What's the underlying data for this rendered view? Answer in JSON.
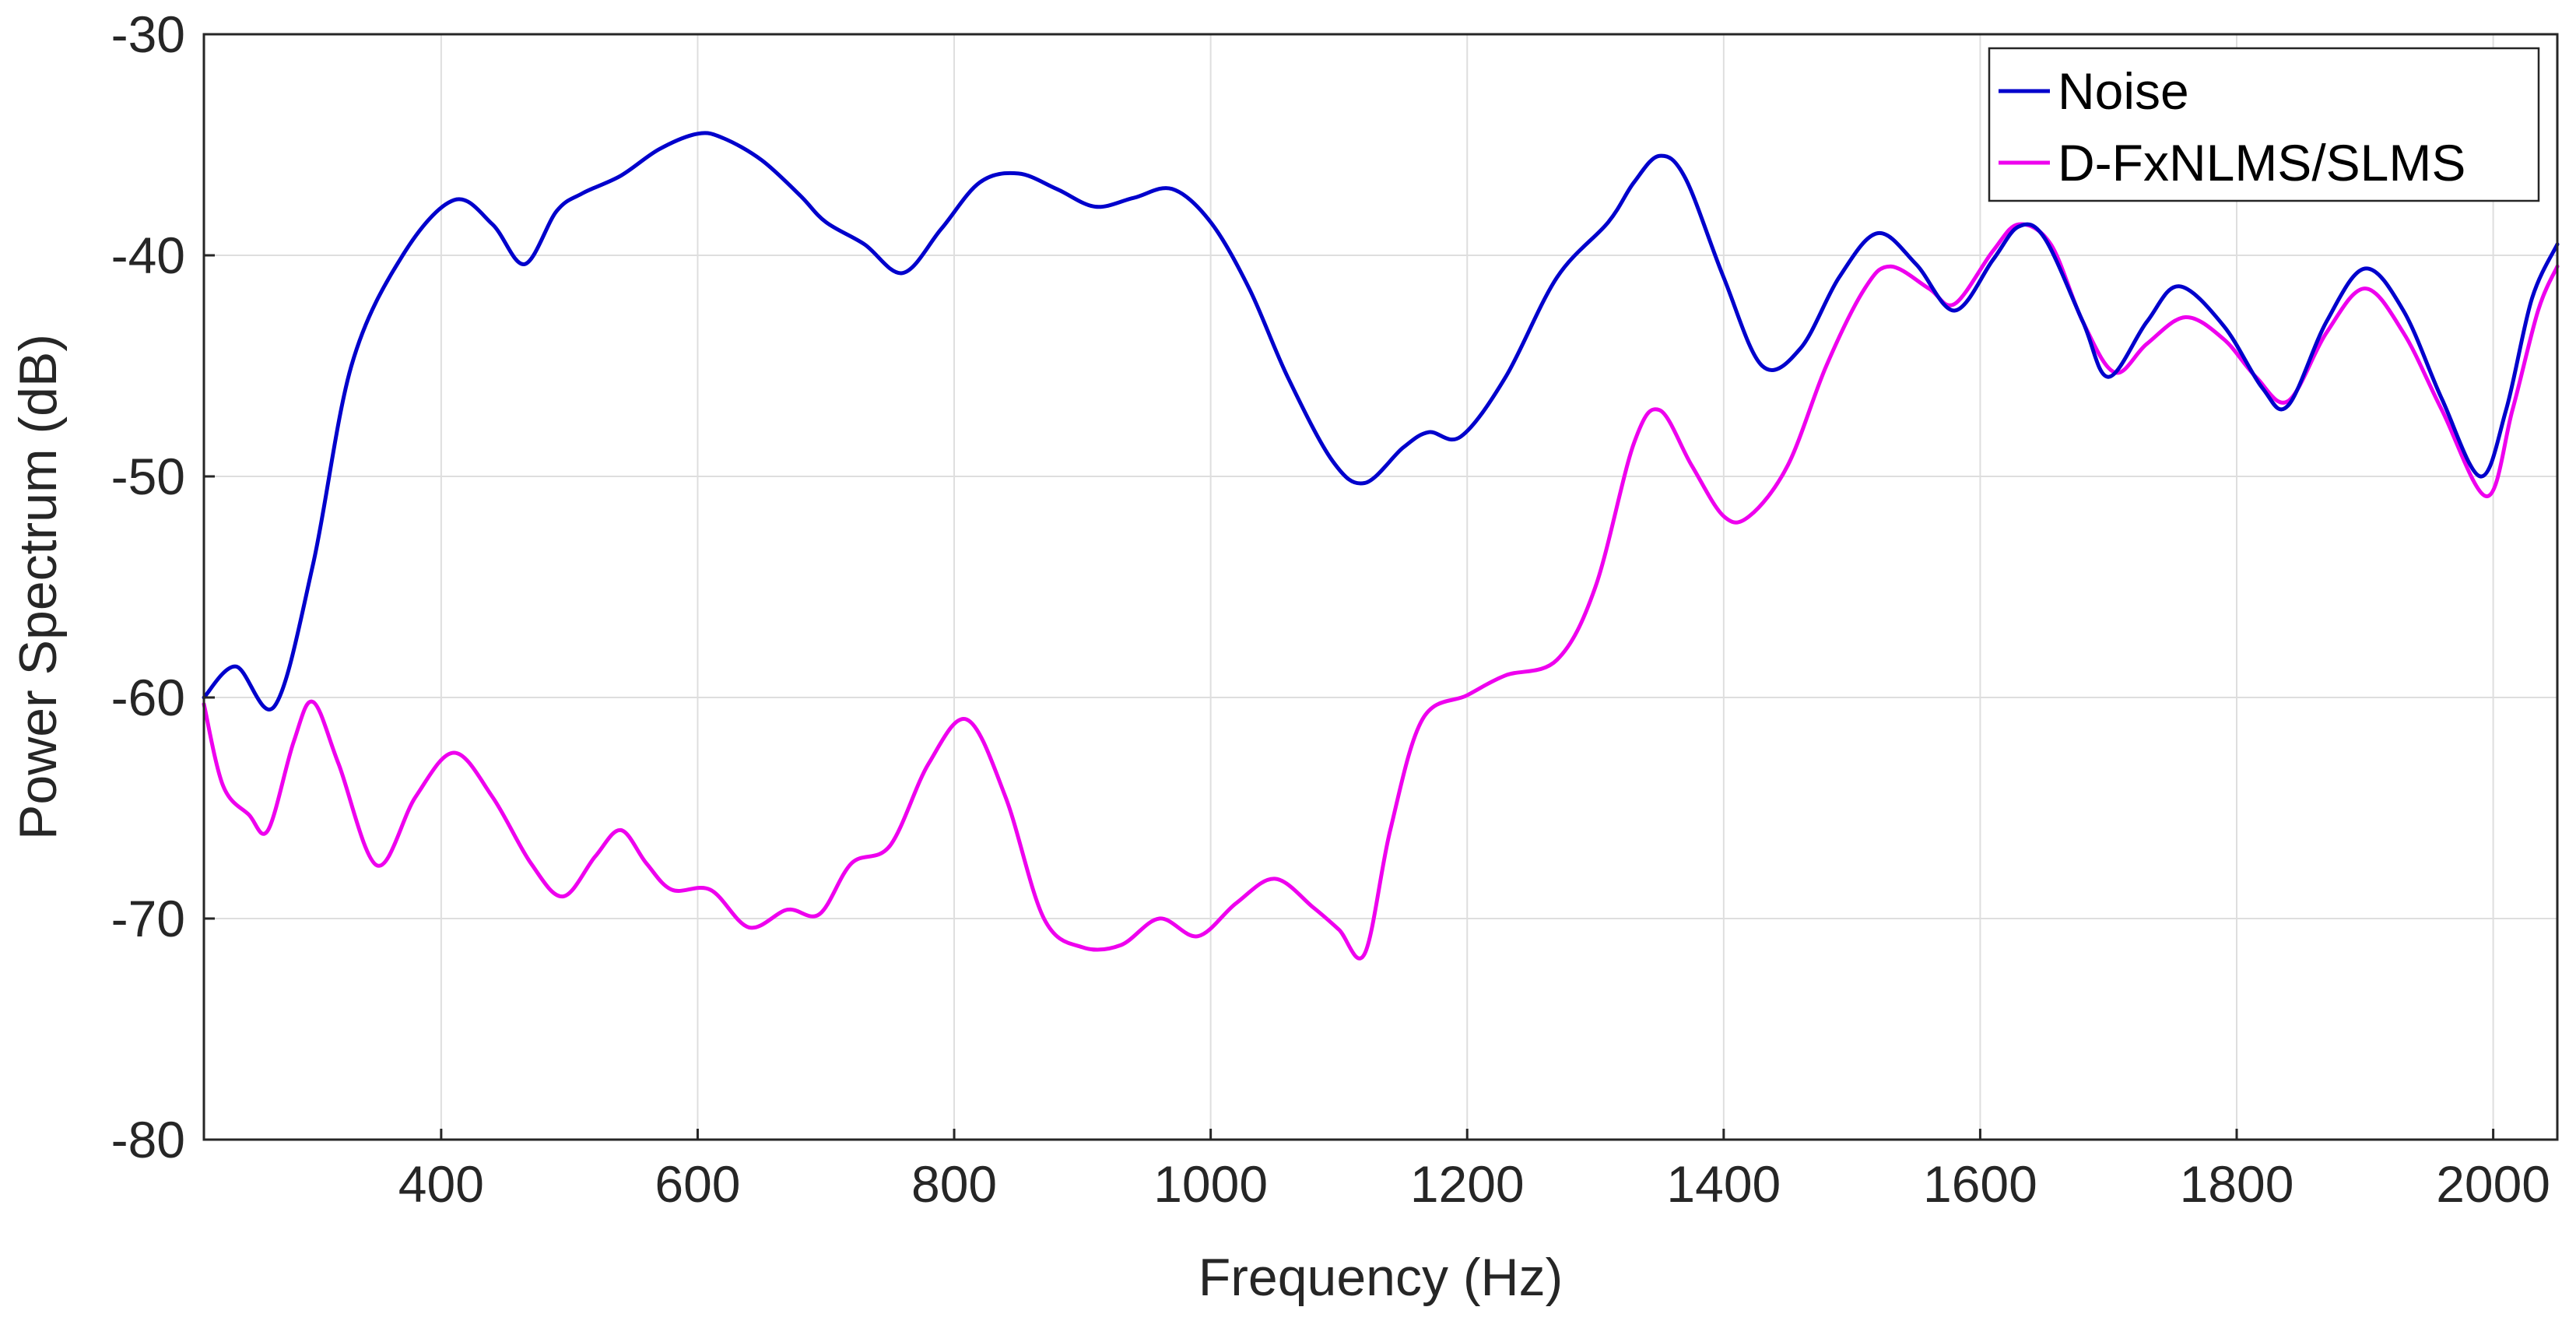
{
  "chart_data": {
    "type": "line",
    "xlabel": "Frequency (Hz)",
    "ylabel": "Power Spectrum (dB)",
    "xlim": [
      215,
      2050
    ],
    "ylim": [
      -80,
      -30
    ],
    "x_ticks": [
      400,
      600,
      800,
      1000,
      1200,
      1400,
      1600,
      1800,
      2000
    ],
    "y_ticks": [
      -80,
      -70,
      -60,
      -50,
      -40,
      -30
    ],
    "grid": true,
    "legend_position": "top-right",
    "series": [
      {
        "name": "Noise",
        "color": "#0000cc",
        "points": [
          [
            215,
            -60
          ],
          [
            240,
            -58.6
          ],
          [
            270,
            -60.4
          ],
          [
            300,
            -54
          ],
          [
            330,
            -45
          ],
          [
            370,
            -40
          ],
          [
            410,
            -37.5
          ],
          [
            440,
            -38.6
          ],
          [
            465,
            -40.4
          ],
          [
            490,
            -38
          ],
          [
            510,
            -37.2
          ],
          [
            540,
            -36.4
          ],
          [
            570,
            -35.2
          ],
          [
            600,
            -34.5
          ],
          [
            620,
            -34.7
          ],
          [
            650,
            -35.7
          ],
          [
            680,
            -37.3
          ],
          [
            700,
            -38.5
          ],
          [
            730,
            -39.5
          ],
          [
            760,
            -40.8
          ],
          [
            790,
            -38.8
          ],
          [
            820,
            -36.7
          ],
          [
            850,
            -36.3
          ],
          [
            880,
            -37
          ],
          [
            910,
            -37.8
          ],
          [
            940,
            -37.4
          ],
          [
            970,
            -37
          ],
          [
            1000,
            -38.5
          ],
          [
            1030,
            -41.5
          ],
          [
            1060,
            -45.5
          ],
          [
            1095,
            -49.3
          ],
          [
            1120,
            -50.3
          ],
          [
            1150,
            -48.7
          ],
          [
            1170,
            -48
          ],
          [
            1195,
            -48.2
          ],
          [
            1230,
            -45.5
          ],
          [
            1270,
            -41
          ],
          [
            1310,
            -38.5
          ],
          [
            1330,
            -36.7
          ],
          [
            1350,
            -35.5
          ],
          [
            1370,
            -36.5
          ],
          [
            1400,
            -41
          ],
          [
            1430,
            -45
          ],
          [
            1460,
            -44.2
          ],
          [
            1490,
            -41
          ],
          [
            1520,
            -39
          ],
          [
            1550,
            -40.4
          ],
          [
            1580,
            -42.5
          ],
          [
            1610,
            -40.2
          ],
          [
            1630,
            -38.7
          ],
          [
            1650,
            -39.2
          ],
          [
            1680,
            -43
          ],
          [
            1700,
            -45.5
          ],
          [
            1730,
            -43
          ],
          [
            1755,
            -41.4
          ],
          [
            1790,
            -43.2
          ],
          [
            1820,
            -46
          ],
          [
            1840,
            -46.8
          ],
          [
            1870,
            -43
          ],
          [
            1900,
            -40.6
          ],
          [
            1930,
            -42.5
          ],
          [
            1960,
            -46.5
          ],
          [
            1990,
            -50
          ],
          [
            2010,
            -47
          ],
          [
            2030,
            -42
          ],
          [
            2050,
            -39.5
          ]
        ]
      },
      {
        "name": "D-FxNLMS/SLMS",
        "color": "#ee00ee",
        "points": [
          [
            215,
            -60.3
          ],
          [
            230,
            -64
          ],
          [
            250,
            -65.3
          ],
          [
            265,
            -66
          ],
          [
            285,
            -62
          ],
          [
            300,
            -60.2
          ],
          [
            320,
            -63
          ],
          [
            350,
            -67.6
          ],
          [
            380,
            -64.5
          ],
          [
            410,
            -62.5
          ],
          [
            440,
            -64.5
          ],
          [
            470,
            -67.5
          ],
          [
            495,
            -69
          ],
          [
            520,
            -67.2
          ],
          [
            540,
            -66
          ],
          [
            560,
            -67.5
          ],
          [
            580,
            -68.7
          ],
          [
            610,
            -68.7
          ],
          [
            640,
            -70.4
          ],
          [
            670,
            -69.6
          ],
          [
            695,
            -69.8
          ],
          [
            720,
            -67.5
          ],
          [
            750,
            -66.7
          ],
          [
            780,
            -63
          ],
          [
            810,
            -61
          ],
          [
            840,
            -64.5
          ],
          [
            870,
            -70
          ],
          [
            900,
            -71.3
          ],
          [
            930,
            -71.2
          ],
          [
            960,
            -70
          ],
          [
            990,
            -70.8
          ],
          [
            1020,
            -69.3
          ],
          [
            1050,
            -68.2
          ],
          [
            1080,
            -69.5
          ],
          [
            1100,
            -70.5
          ],
          [
            1120,
            -71.6
          ],
          [
            1140,
            -66
          ],
          [
            1165,
            -61
          ],
          [
            1200,
            -59.9
          ],
          [
            1230,
            -59
          ],
          [
            1270,
            -58.3
          ],
          [
            1300,
            -55
          ],
          [
            1330,
            -48.5
          ],
          [
            1350,
            -47
          ],
          [
            1375,
            -49.5
          ],
          [
            1400,
            -51.8
          ],
          [
            1420,
            -51.8
          ],
          [
            1450,
            -49.5
          ],
          [
            1480,
            -45
          ],
          [
            1510,
            -41.5
          ],
          [
            1530,
            -40.5
          ],
          [
            1560,
            -41.5
          ],
          [
            1580,
            -42.2
          ],
          [
            1610,
            -39.8
          ],
          [
            1630,
            -38.6
          ],
          [
            1655,
            -39.5
          ],
          [
            1680,
            -43
          ],
          [
            1705,
            -45.3
          ],
          [
            1730,
            -44
          ],
          [
            1760,
            -42.8
          ],
          [
            1790,
            -43.8
          ],
          [
            1815,
            -45.5
          ],
          [
            1840,
            -46.6
          ],
          [
            1870,
            -43.5
          ],
          [
            1900,
            -41.5
          ],
          [
            1930,
            -43.5
          ],
          [
            1960,
            -47
          ],
          [
            1995,
            -50.9
          ],
          [
            2015,
            -47
          ],
          [
            2035,
            -42.5
          ],
          [
            2050,
            -40.5
          ]
        ]
      }
    ]
  }
}
